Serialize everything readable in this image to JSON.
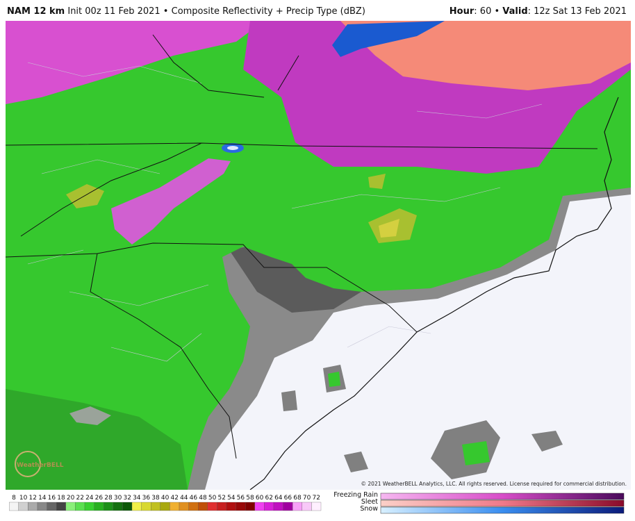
{
  "header": {
    "model": "NAM 12 km",
    "description": "Init 00z 11 Feb 2021 • Composite Reflectivity + Precip Type (dBZ)",
    "hour_label": "Hour",
    "hour_value": ": 60 • ",
    "valid_label": "Valid",
    "valid_value": ": 12z Sat 13 Feb 2021"
  },
  "copyright": "© 2021 WeatherBELL Analytics, LLC. All rights reserved. License required for commercial distribution.",
  "logo": "WeatherBELL",
  "legend": {
    "reflectivity_ticks": [
      8,
      10,
      12,
      14,
      16,
      18,
      20,
      22,
      24,
      26,
      28,
      30,
      32,
      34,
      36,
      38,
      40,
      42,
      44,
      46,
      48,
      50,
      52,
      54,
      56,
      58,
      60,
      62,
      64,
      66,
      68,
      70,
      72
    ],
    "precip_types": [
      "Freezing Rain",
      "Sleet",
      "Snow"
    ]
  }
}
